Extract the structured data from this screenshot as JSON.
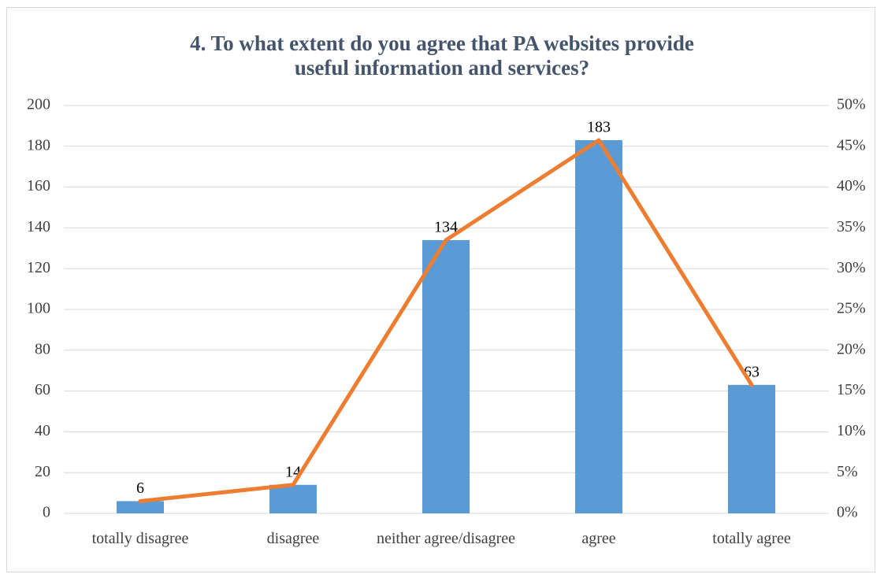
{
  "chart_data": {
    "type": "bar",
    "title": "4. To what extent do you agree that PA websites provide useful information and services?",
    "categories": [
      "totally disagree",
      "disagree",
      "neither agree/disagree",
      "agree",
      "totally agree"
    ],
    "series": [
      {
        "type": "bar",
        "color": "#5b9bd5",
        "values": [
          6,
          14,
          134,
          183,
          63
        ]
      },
      {
        "type": "line",
        "color": "#ed7d31",
        "axis": "y2",
        "values": [
          1.5,
          3.5,
          33.5,
          45.75,
          15.75
        ]
      }
    ],
    "ylim": [
      0,
      200
    ],
    "yticks": [
      0,
      20,
      40,
      60,
      80,
      100,
      120,
      140,
      160,
      180,
      200
    ],
    "y2lim": [
      0,
      50
    ],
    "y2ticks": [
      {
        "value": 0,
        "label": "0%"
      },
      {
        "value": 5,
        "label": "5%"
      },
      {
        "value": 10,
        "label": "10%"
      },
      {
        "value": 15,
        "label": "15%"
      },
      {
        "value": 20,
        "label": "20%"
      },
      {
        "value": 25,
        "label": "25%"
      },
      {
        "value": 30,
        "label": "30%"
      },
      {
        "value": 35,
        "label": "35%"
      },
      {
        "value": 40,
        "label": "40%"
      },
      {
        "value": 45,
        "label": "45%"
      },
      {
        "value": 50,
        "label": "50%"
      }
    ],
    "grid": true
  }
}
